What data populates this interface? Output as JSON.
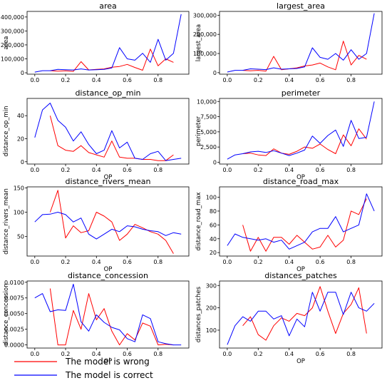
{
  "legend": [
    {
      "label": "The model is wrong",
      "color": "#ff0000"
    },
    {
      "label": "The model is correct",
      "color": "#0000ff"
    }
  ],
  "chart_data": [
    {
      "type": "line",
      "title": "area",
      "xlabel": "",
      "ylabel": "area",
      "xlim": [
        -0.05,
        1.0
      ],
      "ylim": [
        -10000,
        440000
      ],
      "xticks": [
        "0.0",
        "0.2",
        "0.4",
        "0.6",
        "0.8"
      ],
      "yticks": [
        {
          "v": 0,
          "label": "0"
        },
        {
          "v": 100000,
          "label": "100,000"
        },
        {
          "v": 200000,
          "label": "200,000"
        },
        {
          "v": 300000,
          "label": "300,000"
        },
        {
          "v": 400000,
          "label": "400,000"
        }
      ],
      "series": [
        {
          "color": "#ff0000",
          "x": [
            0.1,
            0.15,
            0.2,
            0.25,
            0.3,
            0.35,
            0.4,
            0.45,
            0.5,
            0.55,
            0.6,
            0.65,
            0.7,
            0.75,
            0.8,
            0.85,
            0.9
          ],
          "y": [
            15000,
            12000,
            14000,
            10000,
            80000,
            20000,
            25000,
            28000,
            40000,
            45000,
            60000,
            38000,
            18000,
            170000,
            50000,
            100000,
            75000
          ]
        },
        {
          "color": "#0000ff",
          "x": [
            0.0,
            0.05,
            0.1,
            0.15,
            0.2,
            0.25,
            0.3,
            0.35,
            0.4,
            0.45,
            0.5,
            0.55,
            0.6,
            0.65,
            0.7,
            0.75,
            0.8,
            0.85,
            0.9,
            0.95
          ],
          "y": [
            5000,
            15000,
            15000,
            25000,
            22000,
            20000,
            28000,
            20000,
            22000,
            25000,
            35000,
            180000,
            100000,
            90000,
            140000,
            75000,
            240000,
            90000,
            140000,
            420000
          ]
        }
      ]
    },
    {
      "type": "line",
      "title": "largest_area",
      "xlabel": "",
      "ylabel": "largest_area",
      "xlim": [
        -0.05,
        1.0
      ],
      "ylim": [
        -8000,
        320000
      ],
      "xticks": [
        "0.0",
        "0.2",
        "0.4",
        "0.6",
        "0.8"
      ],
      "yticks": [
        {
          "v": 0,
          "label": "0"
        },
        {
          "v": 100000,
          "label": "100,000"
        },
        {
          "v": 200000,
          "label": "200,000"
        },
        {
          "v": 300000,
          "label": "300,000"
        }
      ],
      "series": [
        {
          "color": "#ff0000",
          "x": [
            0.1,
            0.15,
            0.2,
            0.25,
            0.3,
            0.35,
            0.4,
            0.45,
            0.5,
            0.55,
            0.6,
            0.65,
            0.7,
            0.75,
            0.8,
            0.85,
            0.9
          ],
          "y": [
            12000,
            10000,
            12000,
            8000,
            85000,
            15000,
            20000,
            25000,
            35000,
            40000,
            50000,
            30000,
            15000,
            165000,
            40000,
            90000,
            70000
          ]
        },
        {
          "color": "#0000ff",
          "x": [
            0.0,
            0.05,
            0.1,
            0.15,
            0.2,
            0.25,
            0.3,
            0.35,
            0.4,
            0.45,
            0.5,
            0.55,
            0.6,
            0.65,
            0.7,
            0.75,
            0.8,
            0.85,
            0.9,
            0.95
          ],
          "y": [
            3000,
            12000,
            12000,
            20000,
            18000,
            16000,
            25000,
            18000,
            20000,
            22000,
            30000,
            130000,
            80000,
            70000,
            100000,
            65000,
            120000,
            70000,
            100000,
            310000
          ]
        }
      ]
    },
    {
      "type": "line",
      "title": "distance_op_min",
      "xlabel": "OP",
      "ylabel": "distance_op_min",
      "xlim": [
        -0.05,
        1.0
      ],
      "ylim": [
        -2,
        55
      ],
      "xticks": [
        "0.0",
        "0.2",
        "0.4",
        "0.6",
        "0.8"
      ],
      "yticks": [
        {
          "v": 0,
          "label": "0"
        },
        {
          "v": 20,
          "label": "20"
        },
        {
          "v": 40,
          "label": "40"
        }
      ],
      "series": [
        {
          "color": "#ff0000",
          "x": [
            0.1,
            0.15,
            0.2,
            0.25,
            0.3,
            0.35,
            0.4,
            0.45,
            0.5,
            0.55,
            0.6,
            0.65,
            0.7,
            0.75,
            0.8,
            0.85,
            0.9
          ],
          "y": [
            40,
            14,
            10,
            9,
            14,
            8,
            6,
            4,
            18,
            4,
            3,
            3,
            2,
            2,
            1,
            1,
            6
          ]
        },
        {
          "color": "#0000ff",
          "x": [
            0.0,
            0.05,
            0.1,
            0.15,
            0.2,
            0.25,
            0.3,
            0.35,
            0.4,
            0.45,
            0.5,
            0.55,
            0.6,
            0.65,
            0.7,
            0.75,
            0.8,
            0.85,
            0.9,
            0.95
          ],
          "y": [
            21,
            45,
            51,
            36,
            30,
            18,
            26,
            15,
            7,
            10,
            27,
            12,
            17,
            3,
            2,
            7,
            9,
            1,
            2,
            3
          ]
        }
      ]
    },
    {
      "type": "line",
      "title": "perimeter",
      "xlabel": "OP",
      "ylabel": "perimeter",
      "xlim": [
        -0.05,
        1.0
      ],
      "ylim": [
        -300,
        10500
      ],
      "xticks": [
        "0.0",
        "0.2",
        "0.4",
        "0.6",
        "0.8"
      ],
      "yticks": [
        {
          "v": 0,
          "label": "0"
        },
        {
          "v": 2500,
          "label": "2,500"
        },
        {
          "v": 5000,
          "label": "5,000"
        },
        {
          "v": 7500,
          "label": "7,500"
        },
        {
          "v": 10000,
          "label": "10,000"
        }
      ],
      "series": [
        {
          "color": "#ff0000",
          "x": [
            0.1,
            0.15,
            0.2,
            0.25,
            0.3,
            0.35,
            0.4,
            0.45,
            0.5,
            0.55,
            0.6,
            0.65,
            0.7,
            0.75,
            0.8,
            0.85,
            0.9
          ],
          "y": [
            1400,
            1500,
            1200,
            1100,
            2200,
            1500,
            1300,
            1800,
            2500,
            2300,
            3000,
            2100,
            1400,
            4500,
            2700,
            5500,
            3800
          ]
        },
        {
          "color": "#0000ff",
          "x": [
            0.0,
            0.05,
            0.1,
            0.15,
            0.2,
            0.25,
            0.3,
            0.35,
            0.4,
            0.45,
            0.5,
            0.55,
            0.6,
            0.65,
            0.7,
            0.75,
            0.8,
            0.85,
            0.9,
            0.95
          ],
          "y": [
            500,
            1200,
            1400,
            1700,
            1800,
            1600,
            1900,
            1500,
            1100,
            1500,
            2000,
            4300,
            3100,
            4400,
            5300,
            2600,
            6900,
            3900,
            4100,
            10000
          ]
        }
      ]
    },
    {
      "type": "line",
      "title": "distance_rivers_mean",
      "xlabel": "OP",
      "ylabel": "distance_rivers_mean",
      "xlim": [
        -0.05,
        1.0
      ],
      "ylim": [
        10,
        152
      ],
      "xticks": [
        "0.0",
        "0.2",
        "0.4",
        "0.6",
        "0.8"
      ],
      "yticks": [
        {
          "v": 50,
          "label": "50"
        },
        {
          "v": 100,
          "label": "100"
        },
        {
          "v": 150,
          "label": "150"
        }
      ],
      "series": [
        {
          "color": "#ff0000",
          "x": [
            0.1,
            0.15,
            0.2,
            0.25,
            0.3,
            0.35,
            0.4,
            0.45,
            0.5,
            0.55,
            0.6,
            0.65,
            0.7,
            0.75,
            0.8,
            0.85,
            0.9
          ],
          "y": [
            100,
            145,
            47,
            72,
            58,
            62,
            100,
            92,
            80,
            42,
            55,
            75,
            68,
            60,
            55,
            42,
            15
          ]
        },
        {
          "color": "#0000ff",
          "x": [
            0.0,
            0.05,
            0.1,
            0.15,
            0.2,
            0.25,
            0.3,
            0.35,
            0.4,
            0.45,
            0.5,
            0.55,
            0.6,
            0.65,
            0.7,
            0.75,
            0.8,
            0.85,
            0.9,
            0.95
          ],
          "y": [
            80,
            95,
            96,
            100,
            95,
            80,
            88,
            55,
            45,
            55,
            65,
            60,
            72,
            70,
            65,
            62,
            60,
            52,
            58,
            55
          ]
        }
      ]
    },
    {
      "type": "line",
      "title": "distance_road_max",
      "xlabel": "OP",
      "ylabel": "distance_road_max",
      "xlim": [
        -0.05,
        1.0
      ],
      "ylim": [
        15,
        115
      ],
      "xticks": [
        "0.0",
        "0.2",
        "0.4",
        "0.6",
        "0.8"
      ],
      "yticks": [
        {
          "v": 20,
          "label": "20"
        },
        {
          "v": 40,
          "label": "40"
        },
        {
          "v": 60,
          "label": "60"
        },
        {
          "v": 80,
          "label": "80"
        },
        {
          "v": 100,
          "label": "100"
        }
      ],
      "series": [
        {
          "color": "#ff0000",
          "x": [
            0.1,
            0.15,
            0.2,
            0.25,
            0.3,
            0.35,
            0.4,
            0.45,
            0.5,
            0.55,
            0.6,
            0.65,
            0.7,
            0.75,
            0.8,
            0.85,
            0.9
          ],
          "y": [
            60,
            22,
            42,
            22,
            42,
            42,
            32,
            45,
            35,
            25,
            28,
            45,
            28,
            38,
            80,
            75,
            98
          ]
        },
        {
          "color": "#0000ff",
          "x": [
            0.0,
            0.05,
            0.1,
            0.15,
            0.2,
            0.25,
            0.3,
            0.35,
            0.4,
            0.45,
            0.5,
            0.55,
            0.6,
            0.65,
            0.7,
            0.75,
            0.8,
            0.85,
            0.9,
            0.95
          ],
          "y": [
            30,
            47,
            42,
            40,
            38,
            40,
            35,
            38,
            25,
            30,
            35,
            50,
            55,
            55,
            72,
            50,
            55,
            60,
            105,
            80
          ]
        }
      ]
    },
    {
      "type": "line",
      "title": "distance_concession",
      "xlabel": "OP",
      "ylabel": "distance_concession",
      "xlim": [
        -0.05,
        1.0
      ],
      "ylim": [
        -0.0005,
        0.0102
      ],
      "xticks": [
        "0.0",
        "0.2",
        "0.4",
        "0.6",
        "0.8"
      ],
      "yticks": [
        {
          "v": 0,
          "label": "0.0000"
        },
        {
          "v": 0.0025,
          "label": "0.0025"
        },
        {
          "v": 0.005,
          "label": "0.0050"
        },
        {
          "v": 0.0075,
          "label": "0.0075"
        },
        {
          "v": 0.01,
          "label": "0.0100"
        }
      ],
      "series": [
        {
          "color": "#ff0000",
          "x": [
            0.1,
            0.15,
            0.2,
            0.25,
            0.3,
            0.35,
            0.4,
            0.45,
            0.5,
            0.55,
            0.6,
            0.65,
            0.7,
            0.75,
            0.8,
            0.85,
            0.9
          ],
          "y": [
            0.009,
            0.0,
            0.0,
            0.0055,
            0.0025,
            0.0082,
            0.004,
            0.0058,
            0.0022,
            0.0,
            0.0018,
            0.0008,
            0.0035,
            0.003,
            0.0,
            0.0001,
            0.0
          ]
        },
        {
          "color": "#0000ff",
          "x": [
            0.0,
            0.05,
            0.1,
            0.15,
            0.2,
            0.25,
            0.3,
            0.35,
            0.4,
            0.45,
            0.5,
            0.55,
            0.6,
            0.65,
            0.7,
            0.75,
            0.8,
            0.85,
            0.9,
            0.95
          ],
          "y": [
            0.0075,
            0.0082,
            0.0053,
            0.0056,
            0.0055,
            0.0097,
            0.0037,
            0.0022,
            0.0048,
            0.0036,
            0.0028,
            0.0024,
            0.001,
            0.0005,
            0.0048,
            0.0042,
            0.0005,
            0.0002,
            0.0,
            0.0
          ]
        }
      ]
    },
    {
      "type": "line",
      "title": "distances_patches",
      "xlabel": "OP",
      "ylabel": "distances_patches",
      "xlim": [
        -0.05,
        1.0
      ],
      "ylim": [
        20,
        320
      ],
      "xticks": [
        "0.0",
        "0.2",
        "0.4",
        "0.6",
        "0.8"
      ],
      "yticks": [
        {
          "v": 100,
          "label": "100"
        },
        {
          "v": 200,
          "label": "200"
        },
        {
          "v": 300,
          "label": "300"
        }
      ],
      "series": [
        {
          "color": "#ff0000",
          "x": [
            0.1,
            0.15,
            0.2,
            0.25,
            0.3,
            0.35,
            0.4,
            0.45,
            0.5,
            0.55,
            0.6,
            0.65,
            0.7,
            0.75,
            0.8,
            0.85,
            0.9
          ],
          "y": [
            120,
            160,
            80,
            55,
            120,
            155,
            140,
            175,
            165,
            200,
            295,
            185,
            85,
            175,
            215,
            290,
            85
          ]
        },
        {
          "color": "#0000ff",
          "x": [
            0.0,
            0.05,
            0.1,
            0.15,
            0.2,
            0.25,
            0.3,
            0.35,
            0.4,
            0.45,
            0.5,
            0.55,
            0.6,
            0.65,
            0.7,
            0.75,
            0.8,
            0.85,
            0.9,
            0.95
          ],
          "y": [
            35,
            120,
            160,
            140,
            185,
            185,
            150,
            165,
            75,
            150,
            115,
            270,
            185,
            270,
            270,
            170,
            270,
            200,
            185,
            220
          ]
        }
      ]
    }
  ]
}
